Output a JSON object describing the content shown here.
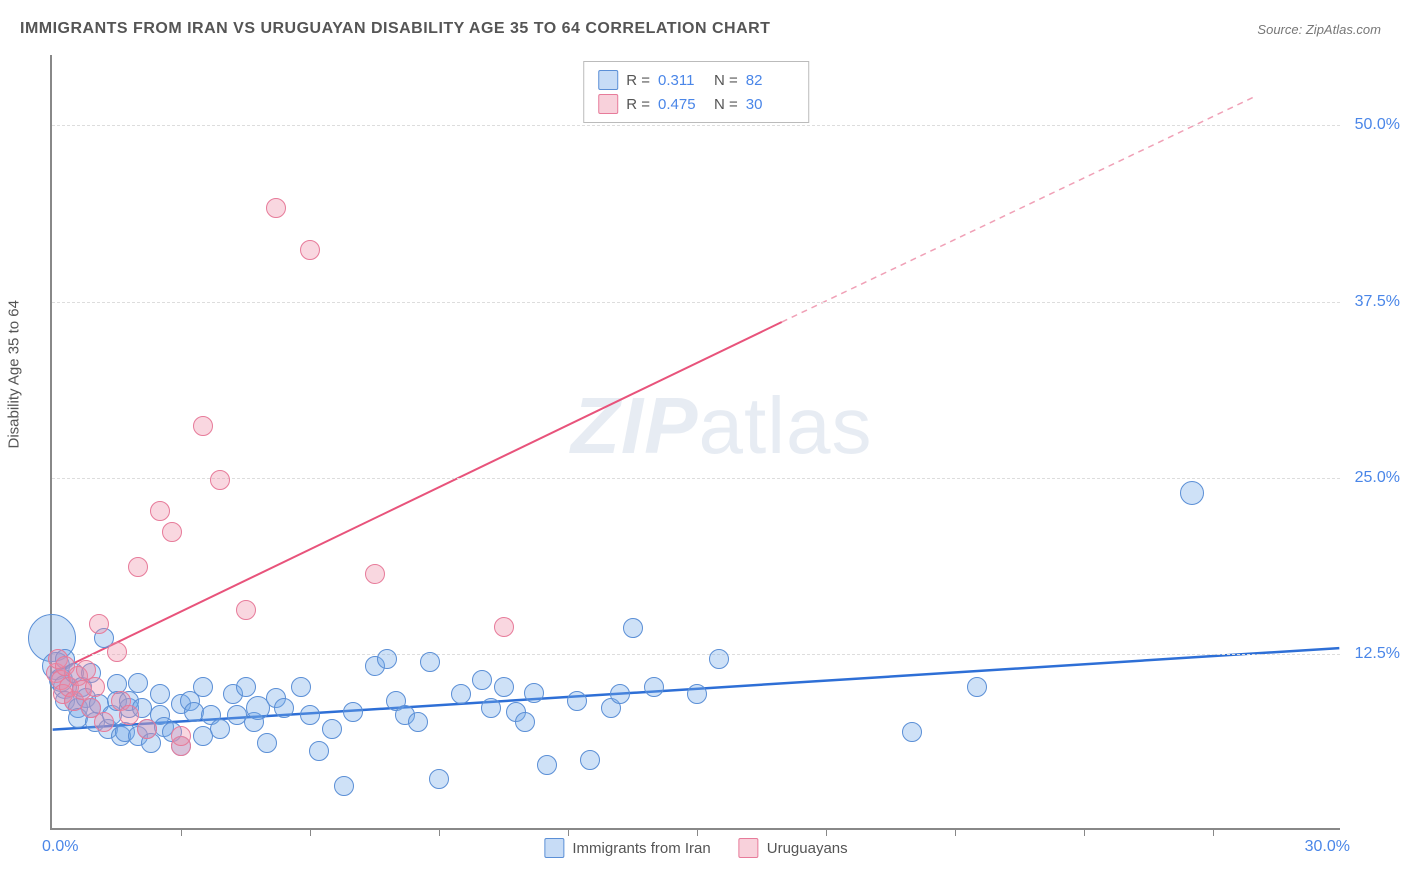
{
  "title": "IMMIGRANTS FROM IRAN VS URUGUAYAN DISABILITY AGE 35 TO 64 CORRELATION CHART",
  "source_label": "Source:",
  "source_name": "ZipAtlas.com",
  "ylabel": "Disability Age 35 to 64",
  "watermark_bold": "ZIP",
  "watermark_rest": "atlas",
  "chart": {
    "type": "scatter",
    "background_color": "#ffffff",
    "grid_color": "#dddddd",
    "axis_color": "#888888",
    "xlim": [
      0,
      30
    ],
    "ylim": [
      0,
      55
    ],
    "xtick_labels": [
      "0.0%",
      "30.0%"
    ],
    "xtick_positions": [
      3,
      6,
      9,
      12,
      15,
      18,
      21,
      24,
      27
    ],
    "ytick_labels": [
      {
        "v": 12.5,
        "t": "12.5%"
      },
      {
        "v": 25.0,
        "t": "25.0%"
      },
      {
        "v": 37.5,
        "t": "37.5%"
      },
      {
        "v": 50.0,
        "t": "50.0%"
      }
    ],
    "marker_radius": 10,
    "series": [
      {
        "name": "Immigrants from Iran",
        "color_fill": "rgba(116,168,232,0.35)",
        "color_stroke": "#5b8fd6",
        "R": 0.311,
        "N": 82,
        "trend": {
          "x1": 0,
          "y1": 7.0,
          "x2": 30,
          "y2": 12.8,
          "color": "#2e6fd6",
          "width": 2.5,
          "dash": "none"
        },
        "points": [
          [
            0.0,
            13.5,
            24
          ],
          [
            0.1,
            11.5,
            14
          ],
          [
            0.2,
            10.5,
            12
          ],
          [
            0.3,
            10.0,
            12
          ],
          [
            0.3,
            9.0,
            10
          ],
          [
            0.3,
            12.0,
            10
          ],
          [
            0.5,
            9.0,
            10
          ],
          [
            0.5,
            11.0,
            10
          ],
          [
            0.6,
            8.5,
            10
          ],
          [
            0.6,
            7.8,
            10
          ],
          [
            0.7,
            10.0,
            10
          ],
          [
            0.8,
            9.2,
            10
          ],
          [
            0.9,
            8.5,
            10
          ],
          [
            0.9,
            11.0,
            10
          ],
          [
            1.0,
            7.5,
            10
          ],
          [
            1.1,
            8.8,
            10
          ],
          [
            1.2,
            13.5,
            10
          ],
          [
            1.3,
            7.0,
            10
          ],
          [
            1.4,
            8.0,
            10
          ],
          [
            1.5,
            10.2,
            10
          ],
          [
            1.5,
            9.0,
            10
          ],
          [
            1.6,
            6.5,
            10
          ],
          [
            1.7,
            6.8,
            10
          ],
          [
            1.8,
            8.5,
            10
          ],
          [
            1.8,
            9.0,
            10
          ],
          [
            2.0,
            6.5,
            10
          ],
          [
            2.0,
            10.3,
            10
          ],
          [
            2.1,
            8.5,
            10
          ],
          [
            2.2,
            7.0,
            10
          ],
          [
            2.3,
            6.0,
            10
          ],
          [
            2.5,
            8.0,
            10
          ],
          [
            2.5,
            9.5,
            10
          ],
          [
            2.6,
            7.2,
            10
          ],
          [
            2.8,
            6.8,
            10
          ],
          [
            3.0,
            8.8,
            10
          ],
          [
            3.0,
            5.8,
            10
          ],
          [
            3.2,
            9.0,
            10
          ],
          [
            3.3,
            8.2,
            10
          ],
          [
            3.5,
            10.0,
            10
          ],
          [
            3.5,
            6.5,
            10
          ],
          [
            3.7,
            8.0,
            10
          ],
          [
            3.9,
            7.0,
            10
          ],
          [
            4.2,
            9.5,
            10
          ],
          [
            4.3,
            8.0,
            10
          ],
          [
            4.5,
            10.0,
            10
          ],
          [
            4.7,
            7.5,
            10
          ],
          [
            4.8,
            8.5,
            12
          ],
          [
            5.0,
            6.0,
            10
          ],
          [
            5.2,
            9.2,
            10
          ],
          [
            5.4,
            8.5,
            10
          ],
          [
            5.8,
            10.0,
            10
          ],
          [
            6.0,
            8.0,
            10
          ],
          [
            6.2,
            5.5,
            10
          ],
          [
            6.5,
            7.0,
            10
          ],
          [
            6.8,
            3.0,
            10
          ],
          [
            7.0,
            8.2,
            10
          ],
          [
            7.5,
            11.5,
            10
          ],
          [
            7.8,
            12.0,
            10
          ],
          [
            8.0,
            9.0,
            10
          ],
          [
            8.2,
            8.0,
            10
          ],
          [
            8.5,
            7.5,
            10
          ],
          [
            8.8,
            11.8,
            10
          ],
          [
            9.0,
            3.5,
            10
          ],
          [
            9.5,
            9.5,
            10
          ],
          [
            10.0,
            10.5,
            10
          ],
          [
            10.2,
            8.5,
            10
          ],
          [
            10.5,
            10.0,
            10
          ],
          [
            10.8,
            8.2,
            10
          ],
          [
            11.0,
            7.5,
            10
          ],
          [
            11.2,
            9.6,
            10
          ],
          [
            11.5,
            4.5,
            10
          ],
          [
            12.2,
            9.0,
            10
          ],
          [
            12.5,
            4.8,
            10
          ],
          [
            13.0,
            8.5,
            10
          ],
          [
            13.2,
            9.5,
            10
          ],
          [
            13.5,
            14.2,
            10
          ],
          [
            14.0,
            10.0,
            10
          ],
          [
            15.0,
            9.5,
            10
          ],
          [
            15.5,
            12.0,
            10
          ],
          [
            20.0,
            6.8,
            10
          ],
          [
            21.5,
            10.0,
            10
          ],
          [
            26.5,
            23.8,
            12
          ]
        ]
      },
      {
        "name": "Uruguayans",
        "color_fill": "rgba(238,140,165,0.35)",
        "color_stroke": "#e77b9a",
        "R": 0.475,
        "N": 30,
        "trend_solid": {
          "x1": 0,
          "y1": 11.0,
          "x2": 17,
          "y2": 36.0,
          "color": "#e8537b",
          "width": 2
        },
        "trend_dash": {
          "x1": 17,
          "y1": 36.0,
          "x2": 28,
          "y2": 52.0,
          "color": "#f0a0b6",
          "width": 1.5
        },
        "points": [
          [
            0.1,
            11.0,
            10
          ],
          [
            0.15,
            12.0,
            10
          ],
          [
            0.2,
            10.5,
            10
          ],
          [
            0.25,
            9.5,
            10
          ],
          [
            0.3,
            11.5,
            10
          ],
          [
            0.4,
            10.0,
            10
          ],
          [
            0.5,
            9.0,
            10
          ],
          [
            0.6,
            10.8,
            10
          ],
          [
            0.7,
            9.8,
            10
          ],
          [
            0.8,
            11.2,
            10
          ],
          [
            0.9,
            8.5,
            10
          ],
          [
            1.0,
            10.0,
            10
          ],
          [
            1.1,
            14.5,
            10
          ],
          [
            1.2,
            7.5,
            10
          ],
          [
            1.5,
            12.5,
            10
          ],
          [
            1.6,
            9.0,
            10
          ],
          [
            1.8,
            8.0,
            10
          ],
          [
            2.0,
            18.5,
            10
          ],
          [
            2.2,
            7.0,
            10
          ],
          [
            2.5,
            22.5,
            10
          ],
          [
            2.8,
            21.0,
            10
          ],
          [
            3.0,
            5.8,
            10
          ],
          [
            3.0,
            6.5,
            10
          ],
          [
            3.5,
            28.5,
            10
          ],
          [
            3.9,
            24.7,
            10
          ],
          [
            4.5,
            15.5,
            10
          ],
          [
            5.2,
            44.0,
            10
          ],
          [
            6.0,
            41.0,
            10
          ],
          [
            7.5,
            18.0,
            10
          ],
          [
            10.5,
            14.3,
            10
          ]
        ]
      }
    ],
    "legend_bottom": [
      {
        "swatch": "blue",
        "label": "Immigrants from Iran"
      },
      {
        "swatch": "pink",
        "label": "Uruguayans"
      }
    ],
    "xaxis_label_color": "#4a86e8",
    "yaxis_label_color": "#4a86e8",
    "title_fontsize": 16,
    "label_fontsize": 15
  }
}
